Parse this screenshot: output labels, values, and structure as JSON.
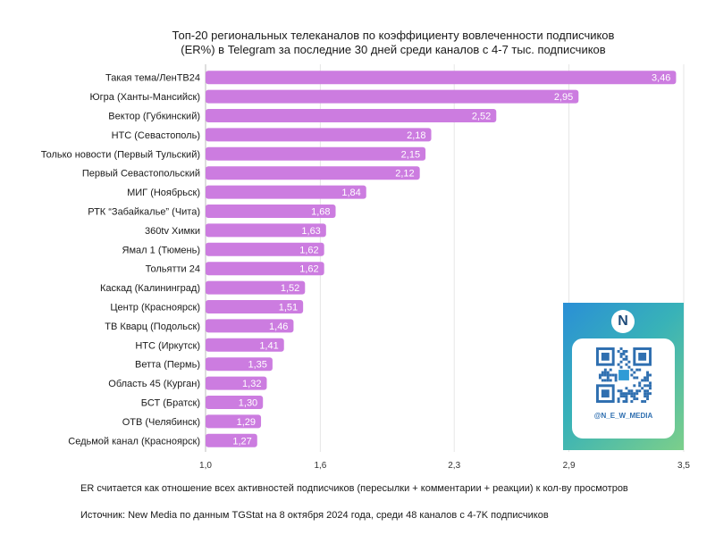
{
  "chart_data": {
    "type": "bar",
    "orientation": "horizontal",
    "title_line1": "Топ-20 региональных телеканалов по коэффициенту вовлеченности подписчиков",
    "title_line2": "(ER%) в Telegram за последние 30 дней среди каналов с 4-7 тыс. подписчиков",
    "categories": [
      "Такая тема/ЛенТВ24",
      "Югра (Ханты-Мансийск)",
      "Вектор (Губкинский)",
      "НТС (Севастополь)",
      "Только новости (Первый Тульский)",
      "Первый Севастопольский",
      "МИГ (Ноябрьск)",
      "РТК “Забайкалье” (Чита)",
      "360tv Химки",
      "Ямал 1 (Тюмень)",
      "Тольятти 24",
      "Каскад (Калининград)",
      "Центр (Красноярск)",
      "ТВ Кварц (Подольск)",
      "НТС (Иркутск)",
      "Ветта (Пермь)",
      "Область 45 (Курган)",
      "БСТ (Братск)",
      "ОТВ (Челябинск)",
      "Седьмой канал (Красноярск)"
    ],
    "values": [
      3.46,
      2.95,
      2.52,
      2.18,
      2.15,
      2.12,
      1.84,
      1.68,
      1.63,
      1.62,
      1.62,
      1.52,
      1.51,
      1.46,
      1.41,
      1.35,
      1.32,
      1.3,
      1.29,
      1.27
    ],
    "value_labels": [
      "3,46",
      "2,95",
      "2,52",
      "2,18",
      "2,15",
      "2,12",
      "1,84",
      "1,68",
      "1,63",
      "1,62",
      "1,62",
      "1,52",
      "1,51",
      "1,46",
      "1,41",
      "1,35",
      "1,32",
      "1,30",
      "1,29",
      "1,27"
    ],
    "xlim": [
      1.0,
      3.5
    ],
    "x_ticks": [
      1.0,
      1.6,
      2.3,
      2.9,
      3.5
    ],
    "x_tick_labels": [
      "1,0",
      "1,6",
      "2,3",
      "2,9",
      "3,5"
    ],
    "bar_color": "#cc7ce0",
    "grid": true
  },
  "footnotes": {
    "line1": "ER считается как отношение всех активностей подписчиков (пересылки + комментарии + реакции) к кол-ву просмотров",
    "line2": "Источник: New Media по данным TGStat на 8 октября 2024 года, среди 48 каналов с 4-7K подписчиков"
  },
  "qr": {
    "logo_letter": "N",
    "logo_text": "New Media",
    "handle": "@N_E_W_MEDIA",
    "icon": "qr-code-icon"
  }
}
